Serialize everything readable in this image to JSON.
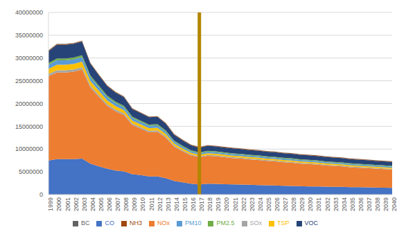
{
  "chart_data": {
    "type": "area",
    "stacked": true,
    "grid": true,
    "legend": "bottom",
    "categories": [
      "1999",
      "2000",
      "2001",
      "2002",
      "2003",
      "2004",
      "2005",
      "2006",
      "2007",
      "2008",
      "2009",
      "2010",
      "2011",
      "2012",
      "2013",
      "2014",
      "2015",
      "2016",
      "2017",
      "2018",
      "2019",
      "2020",
      "2021",
      "2022",
      "2023",
      "2024",
      "2025",
      "2026",
      "2027",
      "2028",
      "2029",
      "2030",
      "2031",
      "2032",
      "2033",
      "2034",
      "2035",
      "2036",
      "2037",
      "2038",
      "2039",
      "2040"
    ],
    "ylim": [
      0,
      40000000
    ],
    "yticks": [
      0,
      5000000,
      10000000,
      15000000,
      20000000,
      25000000,
      30000000,
      35000000,
      40000000
    ],
    "reference_line": {
      "x": "2017",
      "color": "#b38600"
    },
    "series": [
      {
        "name": "CO",
        "color": "#4472c4",
        "values": [
          7500000,
          7800000,
          7800000,
          7800000,
          7900000,
          6800000,
          6200000,
          5700000,
          5300000,
          5100000,
          4500000,
          4300000,
          4000000,
          4000000,
          3600000,
          3000000,
          2700000,
          2400000,
          2200000,
          2400000,
          2350000,
          2300000,
          2250000,
          2200000,
          2150000,
          2100000,
          2050000,
          2000000,
          1950000,
          1900000,
          1850000,
          1800000,
          1780000,
          1750000,
          1720000,
          1700000,
          1650000,
          1620000,
          1600000,
          1550000,
          1520000,
          1500000
        ]
      },
      {
        "name": "NOx",
        "color": "#ed7d31",
        "values": [
          18500000,
          19000000,
          19000000,
          19200000,
          19600000,
          16700000,
          15300000,
          13800000,
          13000000,
          12400000,
          10800000,
          10200000,
          9700000,
          9800000,
          8900000,
          7500000,
          6800000,
          6200000,
          6000000,
          6100000,
          6050000,
          5900000,
          5750000,
          5700000,
          5550000,
          5500000,
          5350000,
          5300000,
          5150000,
          5100000,
          4950000,
          4900000,
          4820000,
          4650000,
          4580000,
          4500000,
          4350000,
          4280000,
          4200000,
          4150000,
          4080000,
          4000000
        ]
      },
      {
        "name": "SOx",
        "color": "#a5a5a5",
        "values": [
          500000,
          500000,
          500000,
          500000,
          500000,
          450000,
          420000,
          400000,
          380000,
          360000,
          330000,
          320000,
          310000,
          300000,
          280000,
          250000,
          230000,
          220000,
          210000,
          220000,
          218000,
          215000,
          212000,
          210000,
          207000,
          204000,
          201000,
          198000,
          195000,
          192000,
          189000,
          186000,
          183000,
          180000,
          177000,
          174000,
          171000,
          168000,
          165000,
          162000,
          160000,
          158000
        ]
      },
      {
        "name": "TSP",
        "color": "#ffc000",
        "values": [
          1100000,
          1200000,
          1200000,
          1200000,
          1200000,
          1000000,
          900000,
          800000,
          750000,
          700000,
          620000,
          600000,
          580000,
          580000,
          540000,
          450000,
          400000,
          370000,
          350000,
          360000,
          355000,
          350000,
          345000,
          340000,
          335000,
          330000,
          325000,
          320000,
          315000,
          310000,
          305000,
          300000,
          295000,
          290000,
          285000,
          280000,
          275000,
          270000,
          265000,
          260000,
          255000,
          250000
        ]
      },
      {
        "name": "PM10",
        "color": "#5b9bd5",
        "values": [
          900000,
          1000000,
          1000000,
          1000000,
          1000000,
          850000,
          780000,
          720000,
          680000,
          650000,
          580000,
          560000,
          540000,
          540000,
          500000,
          420000,
          380000,
          350000,
          330000,
          340000,
          336000,
          332000,
          328000,
          324000,
          320000,
          316000,
          312000,
          308000,
          304000,
          300000,
          296000,
          292000,
          288000,
          284000,
          280000,
          276000,
          272000,
          268000,
          264000,
          260000,
          256000,
          252000
        ]
      },
      {
        "name": "PM2.5",
        "color": "#70ad47",
        "values": [
          400000,
          400000,
          400000,
          400000,
          400000,
          360000,
          340000,
          320000,
          300000,
          290000,
          270000,
          260000,
          250000,
          250000,
          240000,
          210000,
          200000,
          190000,
          180000,
          185000,
          183000,
          181000,
          179000,
          177000,
          175000,
          173000,
          171000,
          169000,
          167000,
          165000,
          163000,
          161000,
          159000,
          157000,
          155000,
          153000,
          151000,
          149000,
          147000,
          145000,
          143000,
          141000
        ]
      },
      {
        "name": "VOC",
        "color": "#264478",
        "values": [
          2600000,
          3000000,
          3000000,
          3000000,
          3000000,
          2600000,
          2300000,
          2100000,
          2000000,
          1900000,
          1700000,
          1650000,
          1600000,
          1600000,
          1500000,
          1300000,
          1200000,
          1100000,
          1050000,
          1100000,
          1090000,
          1080000,
          1070000,
          1060000,
          1050000,
          1040000,
          1030000,
          1020000,
          1010000,
          1000000,
          990000,
          980000,
          970000,
          960000,
          950000,
          940000,
          930000,
          920000,
          910000,
          900000,
          890000,
          880000
        ]
      },
      {
        "name": "NH3",
        "color": "#9e480e",
        "values": [
          150000,
          150000,
          150000,
          150000,
          150000,
          140000,
          140000,
          140000,
          140000,
          140000,
          140000,
          140000,
          130000,
          130000,
          130000,
          130000,
          130000,
          130000,
          130000,
          120000,
          120000,
          120000,
          120000,
          120000,
          120000,
          120000,
          120000,
          120000,
          120000,
          120000,
          120000,
          120000,
          120000,
          120000,
          120000,
          120000,
          120000,
          120000,
          120000,
          120000,
          120000,
          120000
        ]
      },
      {
        "name": "BC",
        "color": "#636363",
        "values": [
          50000,
          50000,
          50000,
          50000,
          50000,
          45000,
          45000,
          45000,
          45000,
          45000,
          45000,
          45000,
          40000,
          40000,
          40000,
          40000,
          40000,
          40000,
          40000,
          35000,
          35000,
          35000,
          35000,
          35000,
          35000,
          35000,
          35000,
          35000,
          35000,
          35000,
          35000,
          35000,
          35000,
          35000,
          35000,
          35000,
          35000,
          35000,
          35000,
          35000,
          35000,
          35000
        ]
      }
    ]
  }
}
